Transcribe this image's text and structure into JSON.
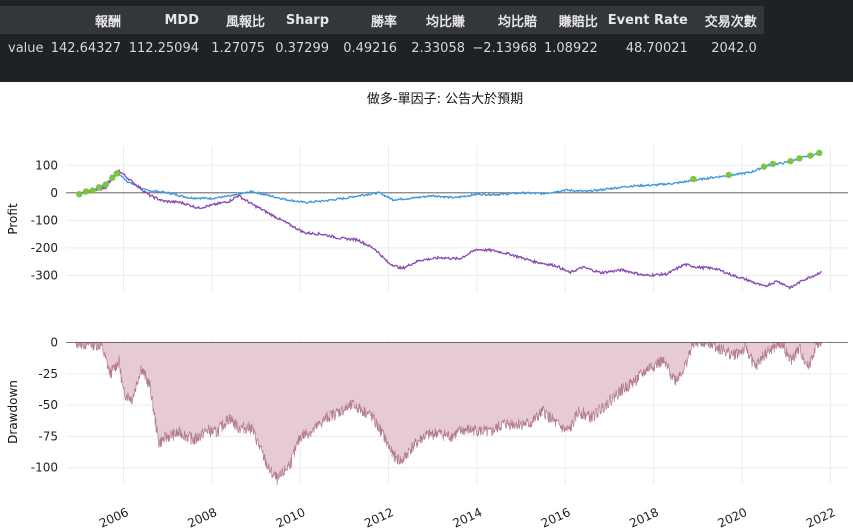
{
  "stats_table": {
    "headers": [
      "報酬",
      "MDD",
      "風報比",
      "Sharp",
      "勝率",
      "均比賺",
      "均比賠",
      "賺賠比",
      "Event Rate",
      "交易次數"
    ],
    "row_label": "value",
    "values": [
      "142.64327",
      "112.25094",
      "1.27075",
      "0.37299",
      "0.49216",
      "2.33058",
      "−2.13968",
      "1.08922",
      "48.70021",
      "2042.0"
    ]
  },
  "chart_data": [
    {
      "type": "line",
      "title": "做多-單因子: 公告大於預期",
      "ylabel": "Profit",
      "ylim": [
        -360,
        170
      ],
      "yticks": [
        100,
        0,
        -100,
        -200,
        -300
      ],
      "xlim": [
        2004.7,
        2022.4
      ],
      "grid": true,
      "series": [
        {
          "color": "#3a96dd",
          "points": [
            [
              2005.0,
              0
            ],
            [
              2005.3,
              8
            ],
            [
              2005.6,
              30
            ],
            [
              2005.85,
              75
            ],
            [
              2006.1,
              40
            ],
            [
              2006.5,
              10
            ],
            [
              2007.0,
              0
            ],
            [
              2007.5,
              -18
            ],
            [
              2008.0,
              -20
            ],
            [
              2008.5,
              -10
            ],
            [
              2008.9,
              5
            ],
            [
              2009.3,
              -10
            ],
            [
              2009.7,
              -25
            ],
            [
              2010.1,
              -35
            ],
            [
              2010.5,
              -30
            ],
            [
              2011.0,
              -20
            ],
            [
              2011.4,
              -8
            ],
            [
              2011.8,
              0
            ],
            [
              2012.1,
              -25
            ],
            [
              2012.5,
              -20
            ],
            [
              2013.0,
              -10
            ],
            [
              2013.5,
              -18
            ],
            [
              2014.0,
              -5
            ],
            [
              2014.5,
              -6
            ],
            [
              2015.0,
              0
            ],
            [
              2015.5,
              -3
            ],
            [
              2016.0,
              10
            ],
            [
              2016.5,
              5
            ],
            [
              2017.0,
              15
            ],
            [
              2017.5,
              25
            ],
            [
              2018.0,
              28
            ],
            [
              2018.5,
              35
            ],
            [
              2018.9,
              45
            ],
            [
              2019.3,
              55
            ],
            [
              2019.8,
              65
            ],
            [
              2020.2,
              75
            ],
            [
              2020.6,
              100
            ],
            [
              2021.0,
              110
            ],
            [
              2021.3,
              125
            ],
            [
              2021.6,
              138
            ],
            [
              2021.8,
              143
            ]
          ]
        },
        {
          "color": "#8a47b5",
          "points": [
            [
              2005.0,
              0
            ],
            [
              2005.3,
              5
            ],
            [
              2005.6,
              20
            ],
            [
              2005.9,
              80
            ],
            [
              2006.2,
              40
            ],
            [
              2006.6,
              -10
            ],
            [
              2006.9,
              -30
            ],
            [
              2007.3,
              -35
            ],
            [
              2007.7,
              -55
            ],
            [
              2008.0,
              -45
            ],
            [
              2008.4,
              -30
            ],
            [
              2008.6,
              -10
            ],
            [
              2008.9,
              -40
            ],
            [
              2009.3,
              -75
            ],
            [
              2009.7,
              -110
            ],
            [
              2010.1,
              -145
            ],
            [
              2010.5,
              -150
            ],
            [
              2010.9,
              -165
            ],
            [
              2011.3,
              -170
            ],
            [
              2011.7,
              -205
            ],
            [
              2012.0,
              -255
            ],
            [
              2012.3,
              -275
            ],
            [
              2012.7,
              -245
            ],
            [
              2013.2,
              -235
            ],
            [
              2013.6,
              -240
            ],
            [
              2014.0,
              -205
            ],
            [
              2014.4,
              -210
            ],
            [
              2014.8,
              -225
            ],
            [
              2015.3,
              -250
            ],
            [
              2015.8,
              -265
            ],
            [
              2016.1,
              -290
            ],
            [
              2016.4,
              -270
            ],
            [
              2016.8,
              -290
            ],
            [
              2017.3,
              -280
            ],
            [
              2017.8,
              -300
            ],
            [
              2018.3,
              -295
            ],
            [
              2018.7,
              -260
            ],
            [
              2019.0,
              -270
            ],
            [
              2019.4,
              -275
            ],
            [
              2019.8,
              -300
            ],
            [
              2020.1,
              -315
            ],
            [
              2020.5,
              -340
            ],
            [
              2020.8,
              -320
            ],
            [
              2021.1,
              -345
            ],
            [
              2021.4,
              -315
            ],
            [
              2021.7,
              -295
            ],
            [
              2021.8,
              -285
            ]
          ]
        }
      ],
      "markers": {
        "color": "#7cc63e",
        "points": [
          [
            2005.0,
            -5
          ],
          [
            2005.15,
            5
          ],
          [
            2005.3,
            8
          ],
          [
            2005.45,
            20
          ],
          [
            2005.6,
            30
          ],
          [
            2005.75,
            55
          ],
          [
            2005.85,
            70
          ],
          [
            2018.9,
            50
          ],
          [
            2019.7,
            65
          ],
          [
            2020.5,
            95
          ],
          [
            2020.7,
            105
          ],
          [
            2021.1,
            115
          ],
          [
            2021.3,
            125
          ],
          [
            2021.55,
            135
          ],
          [
            2021.75,
            145
          ]
        ]
      }
    },
    {
      "type": "area",
      "ylabel": "Drawdown",
      "ylim": [
        -113,
        2
      ],
      "yticks": [
        0,
        -25,
        -50,
        -75,
        -100
      ],
      "xlim": [
        2004.7,
        2022.4
      ],
      "xticks": [
        "2006",
        "2008",
        "2010",
        "2012",
        "2014",
        "2016",
        "2018",
        "2020",
        "2022"
      ],
      "grid": true,
      "fill_color": "#e7cbd2",
      "line_color": "#b27b8b",
      "points": [
        [
          2004.9,
          0
        ],
        [
          2005.5,
          -2
        ],
        [
          2005.7,
          -25
        ],
        [
          2005.9,
          -15
        ],
        [
          2006.0,
          -40
        ],
        [
          2006.2,
          -45
        ],
        [
          2006.4,
          -20
        ],
        [
          2006.6,
          -35
        ],
        [
          2006.8,
          -80
        ],
        [
          2007.0,
          -75
        ],
        [
          2007.3,
          -72
        ],
        [
          2007.6,
          -78
        ],
        [
          2007.9,
          -70
        ],
        [
          2008.1,
          -72
        ],
        [
          2008.4,
          -60
        ],
        [
          2008.6,
          -68
        ],
        [
          2008.9,
          -68
        ],
        [
          2009.1,
          -85
        ],
        [
          2009.3,
          -102
        ],
        [
          2009.5,
          -110
        ],
        [
          2009.8,
          -95
        ],
        [
          2010.0,
          -75
        ],
        [
          2010.3,
          -70
        ],
        [
          2010.6,
          -60
        ],
        [
          2010.9,
          -55
        ],
        [
          2011.2,
          -50
        ],
        [
          2011.6,
          -58
        ],
        [
          2011.9,
          -75
        ],
        [
          2012.1,
          -90
        ],
        [
          2012.3,
          -95
        ],
        [
          2012.5,
          -85
        ],
        [
          2012.8,
          -75
        ],
        [
          2013.1,
          -72
        ],
        [
          2013.4,
          -75
        ],
        [
          2013.7,
          -70
        ],
        [
          2014.0,
          -70
        ],
        [
          2014.3,
          -72
        ],
        [
          2014.6,
          -65
        ],
        [
          2014.9,
          -65
        ],
        [
          2015.2,
          -65
        ],
        [
          2015.5,
          -55
        ],
        [
          2015.8,
          -65
        ],
        [
          2016.0,
          -70
        ],
        [
          2016.1,
          -70
        ],
        [
          2016.3,
          -55
        ],
        [
          2016.6,
          -60
        ],
        [
          2016.9,
          -50
        ],
        [
          2017.2,
          -40
        ],
        [
          2017.6,
          -30
        ],
        [
          2017.9,
          -20
        ],
        [
          2018.2,
          -15
        ],
        [
          2018.5,
          -30
        ],
        [
          2018.7,
          -20
        ],
        [
          2018.85,
          -5
        ],
        [
          2018.9,
          0
        ],
        [
          2019.3,
          0
        ],
        [
          2019.5,
          -5
        ],
        [
          2019.8,
          -10
        ],
        [
          2020.1,
          -5
        ],
        [
          2020.3,
          -20
        ],
        [
          2020.5,
          -10
        ],
        [
          2020.7,
          -5
        ],
        [
          2020.9,
          0
        ],
        [
          2021.1,
          -15
        ],
        [
          2021.3,
          -5
        ],
        [
          2021.5,
          -20
        ],
        [
          2021.7,
          0
        ],
        [
          2021.8,
          0
        ]
      ]
    }
  ]
}
